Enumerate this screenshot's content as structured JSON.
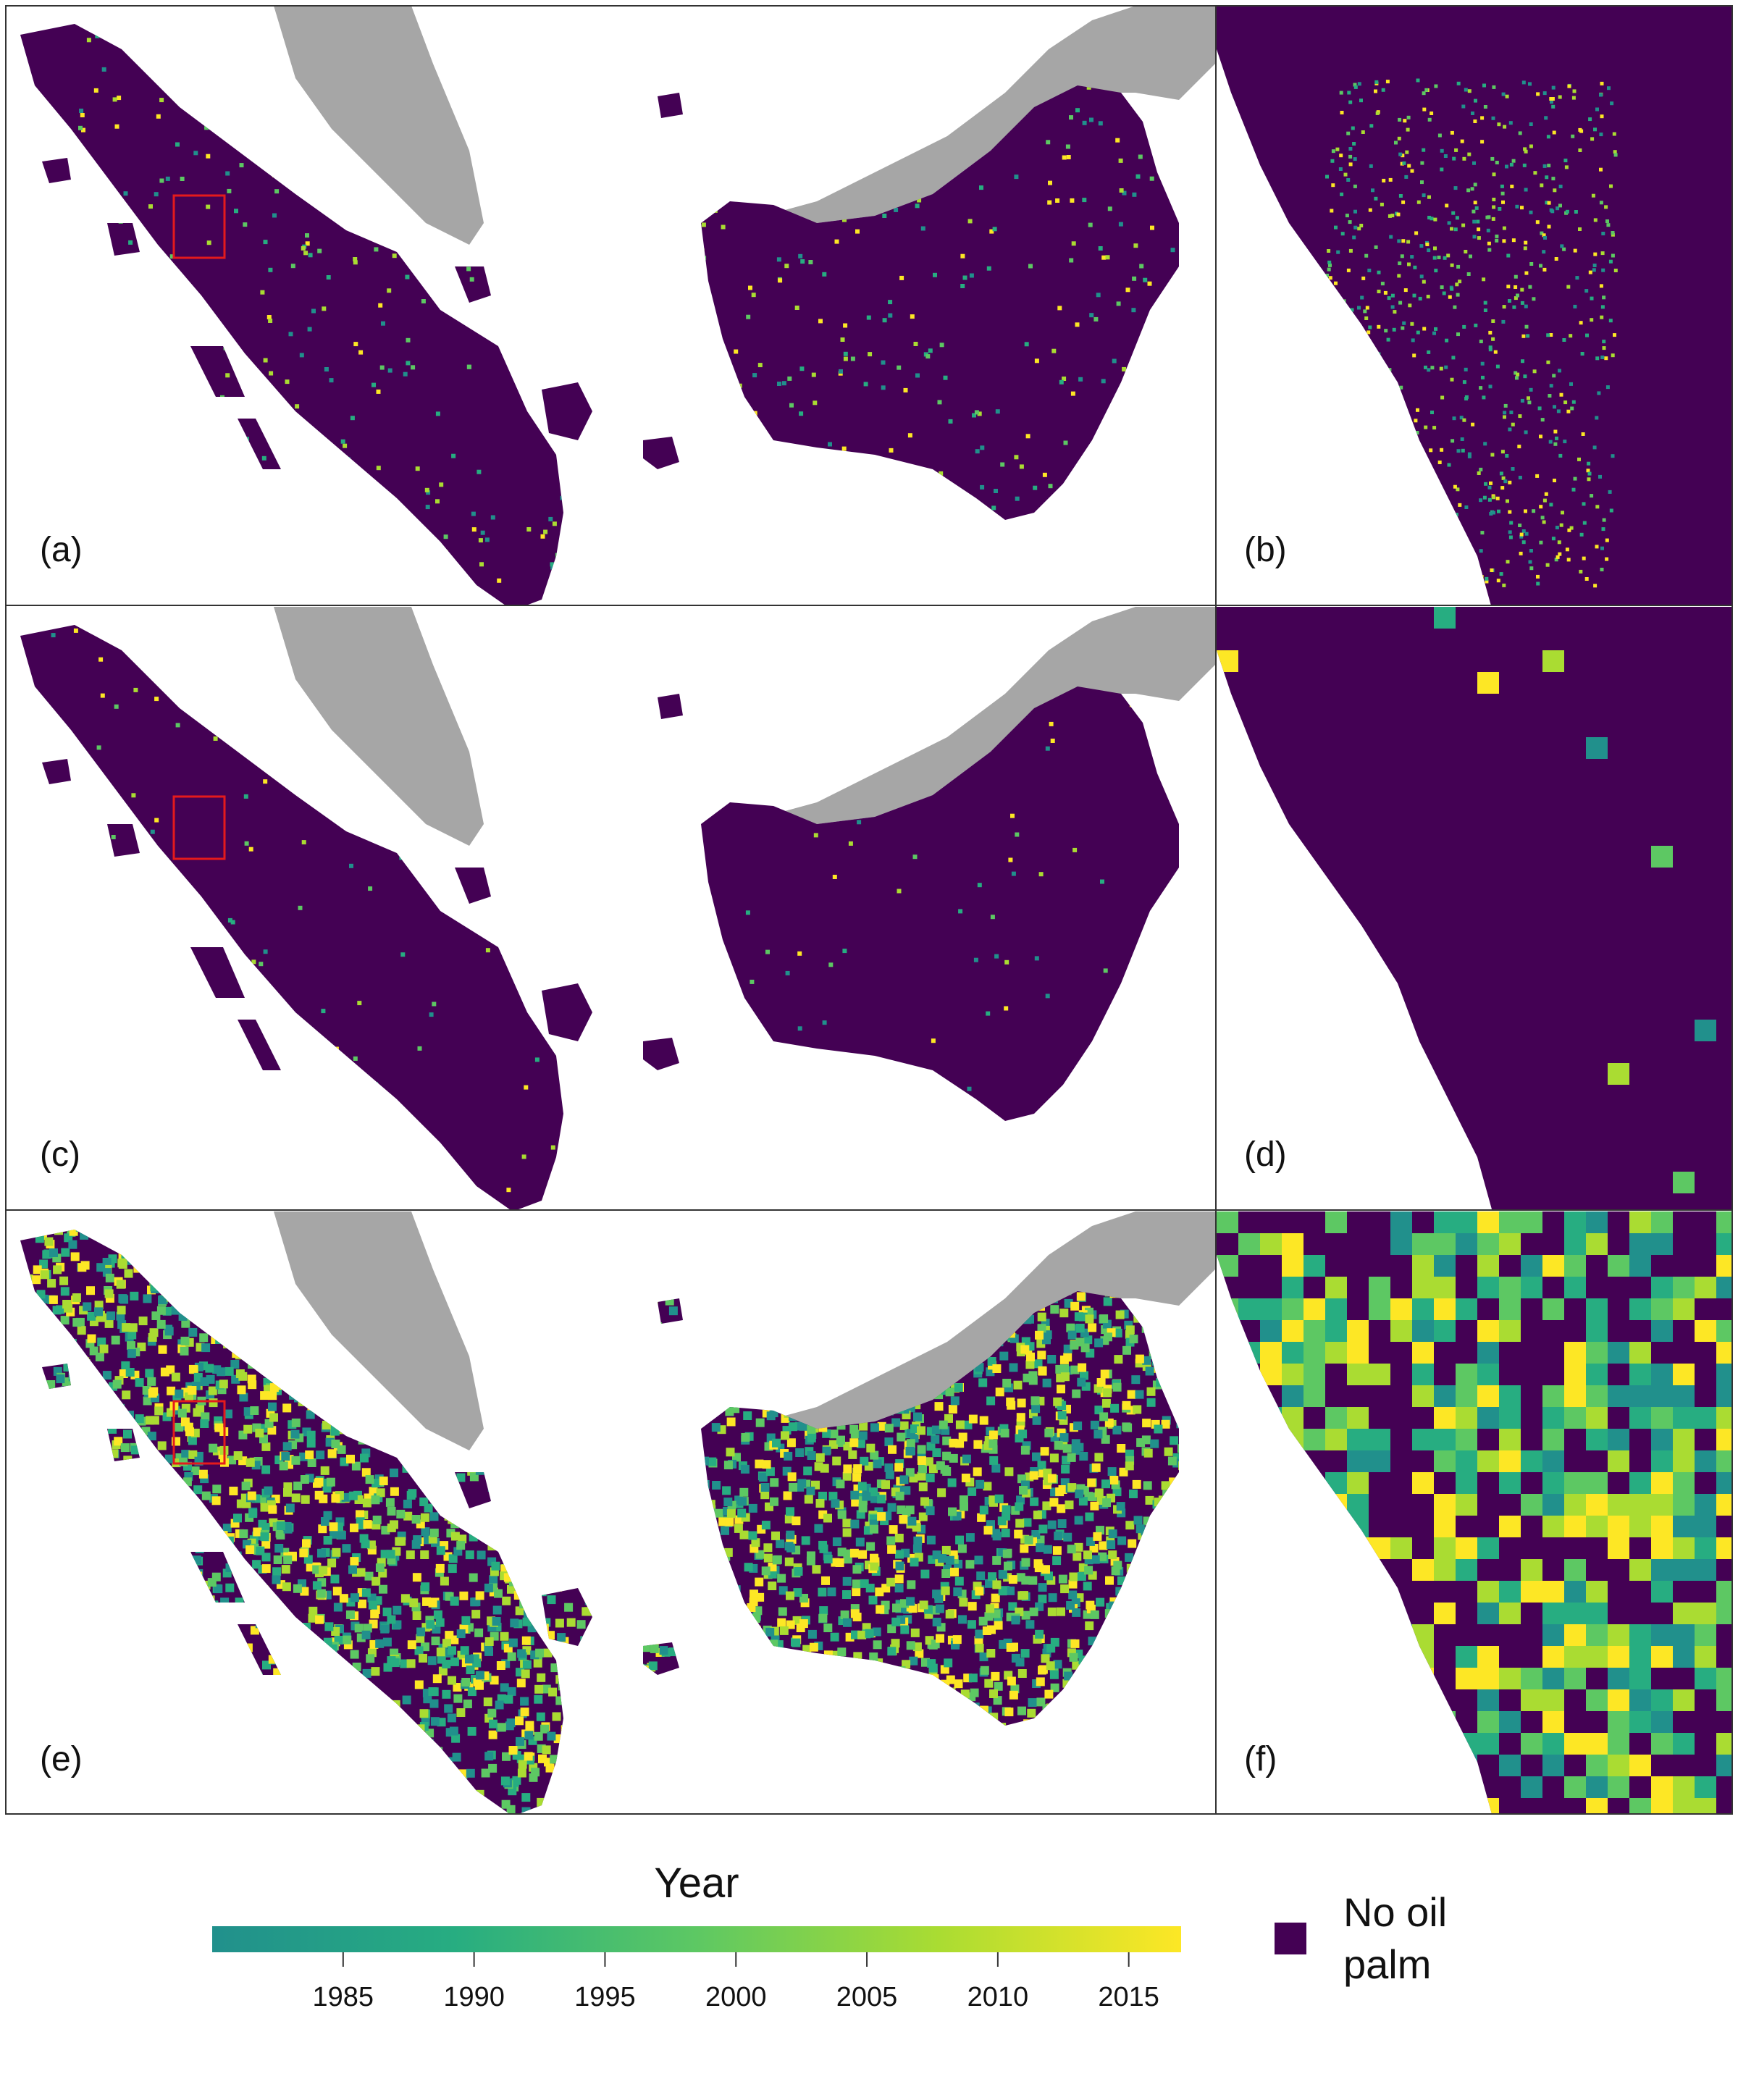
{
  "panels": [
    {
      "label": "(a)",
      "kind": "overview",
      "density": 0.09,
      "coverage": "sparse"
    },
    {
      "label": "(b)",
      "kind": "zoom",
      "density": 0.12,
      "coverage": "sparse"
    },
    {
      "label": "(c)",
      "kind": "overview",
      "density": 0.03,
      "coverage": "very sparse"
    },
    {
      "label": "(d)",
      "kind": "zoom",
      "density": 0.01,
      "coverage": "very sparse"
    },
    {
      "label": "(e)",
      "kind": "overview",
      "density": 0.65,
      "coverage": "dense"
    },
    {
      "label": "(f)",
      "kind": "zoom",
      "density": 0.6,
      "coverage": "dense"
    }
  ],
  "legend": {
    "title": "Year",
    "ticks": [
      "1985",
      "1990",
      "1995",
      "2000",
      "2005",
      "2010",
      "2015"
    ],
    "tick_values": [
      1985,
      1990,
      1995,
      2000,
      2005,
      2010,
      2015
    ],
    "range": [
      1980,
      2017
    ],
    "no_oil_palm_line1": "No oil",
    "no_oil_palm_line2": "palm"
  },
  "colors": {
    "no_oil_palm": "#440154",
    "neighbor_land": "#a6a6a6",
    "sea": "#ffffff",
    "inset_box": "#e41a1c",
    "gradient": [
      "#21908c",
      "#27ad81",
      "#5dc863",
      "#aadc32",
      "#fde725"
    ]
  }
}
